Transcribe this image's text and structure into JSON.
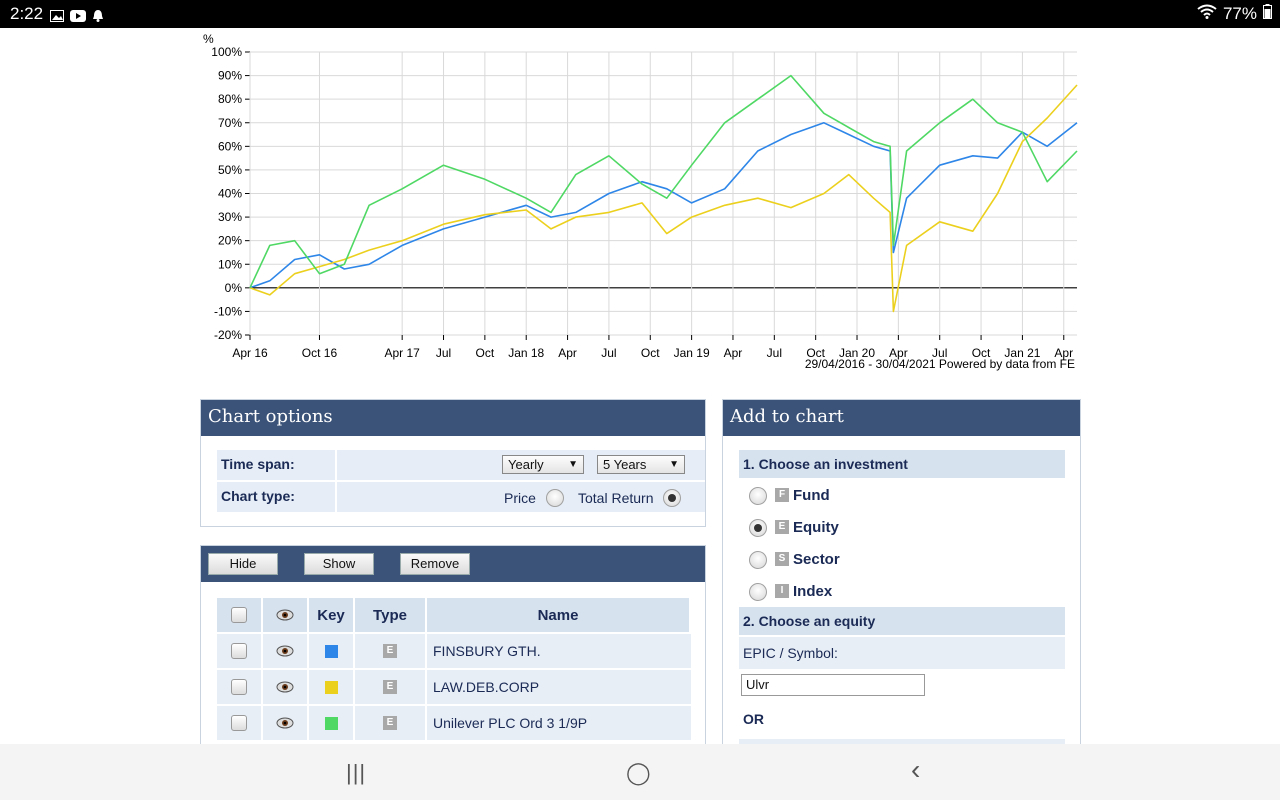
{
  "status": {
    "time": "2:22",
    "battery": "77%"
  },
  "chart": {
    "y_unit": "%",
    "caption": "29/04/2016 - 30/04/2021 Powered by data from FE"
  },
  "chart_data": {
    "type": "line",
    "ylim": [
      -20,
      100
    ],
    "y_ticks": [
      "100%",
      "90%",
      "80%",
      "70%",
      "60%",
      "50%",
      "40%",
      "30%",
      "20%",
      "10%",
      "0%",
      "-10%",
      "-20%"
    ],
    "x_ticks": [
      "Apr 16",
      "Oct 16",
      "Apr 17",
      "Jul",
      "Oct",
      "Jan 18",
      "Apr",
      "Jul",
      "Oct",
      "Jan 19",
      "Apr",
      "Jul",
      "Oct",
      "Jan 20",
      "Apr",
      "Jul",
      "Oct",
      "Jan 21",
      "Apr"
    ],
    "x_range": [
      "2016-04-29",
      "2021-04-30"
    ],
    "grid": true,
    "series": [
      {
        "name": "FINSBURY GTH.",
        "color": "#2e86e8",
        "x": [
          2016.33,
          2016.45,
          2016.6,
          2016.75,
          2016.9,
          2017.05,
          2017.25,
          2017.5,
          2017.75,
          2018.0,
          2018.15,
          2018.3,
          2018.5,
          2018.7,
          2018.85,
          2019.0,
          2019.2,
          2019.4,
          2019.6,
          2019.8,
          2019.95,
          2020.1,
          2020.2,
          2020.22,
          2020.3,
          2020.5,
          2020.7,
          2020.85,
          2021.0,
          2021.15,
          2021.33
        ],
        "values": [
          0,
          3,
          12,
          14,
          8,
          10,
          18,
          25,
          30,
          35,
          30,
          32,
          40,
          45,
          42,
          36,
          42,
          58,
          65,
          70,
          65,
          60,
          58,
          15,
          38,
          52,
          56,
          55,
          66,
          60,
          70
        ]
      },
      {
        "name": "LAW.DEB.CORP",
        "color": "#ecd01e",
        "x": [
          2016.33,
          2016.45,
          2016.6,
          2016.75,
          2016.9,
          2017.05,
          2017.25,
          2017.5,
          2017.75,
          2018.0,
          2018.15,
          2018.3,
          2018.5,
          2018.7,
          2018.85,
          2019.0,
          2019.2,
          2019.4,
          2019.6,
          2019.8,
          2019.95,
          2020.1,
          2020.2,
          2020.22,
          2020.3,
          2020.5,
          2020.7,
          2020.85,
          2021.0,
          2021.15,
          2021.33
        ],
        "values": [
          0,
          -3,
          6,
          9,
          12,
          16,
          20,
          27,
          31,
          33,
          25,
          30,
          32,
          36,
          23,
          30,
          35,
          38,
          34,
          40,
          48,
          38,
          32,
          -10,
          18,
          28,
          24,
          40,
          62,
          72,
          86
        ]
      },
      {
        "name": "Unilever PLC Ord 3 1/9P",
        "color": "#4fd864",
        "x": [
          2016.33,
          2016.45,
          2016.6,
          2016.75,
          2016.9,
          2017.05,
          2017.25,
          2017.5,
          2017.75,
          2018.0,
          2018.15,
          2018.3,
          2018.5,
          2018.7,
          2018.85,
          2019.0,
          2019.2,
          2019.4,
          2019.6,
          2019.8,
          2019.95,
          2020.1,
          2020.2,
          2020.22,
          2020.3,
          2020.5,
          2020.7,
          2020.85,
          2021.0,
          2021.15,
          2021.33
        ],
        "values": [
          0,
          18,
          20,
          6,
          10,
          35,
          42,
          52,
          46,
          38,
          32,
          48,
          56,
          44,
          38,
          52,
          70,
          80,
          90,
          74,
          68,
          62,
          60,
          18,
          58,
          70,
          80,
          70,
          66,
          45,
          58
        ]
      }
    ]
  },
  "chart_options": {
    "title": "Chart options",
    "time_span_label": "Time span:",
    "frequency": "Yearly",
    "period": "5 Years",
    "chart_type_label": "Chart type:",
    "price_label": "Price",
    "total_return_label": "Total Return"
  },
  "series_panel": {
    "hide": "Hide",
    "show": "Show",
    "remove": "Remove",
    "headers": {
      "key": "Key",
      "type": "Type",
      "name": "Name"
    },
    "rows": [
      {
        "name": "FINSBURY GTH.",
        "type": "E",
        "color": "#2e86e8"
      },
      {
        "name": "LAW.DEB.CORP",
        "type": "E",
        "color": "#ecd01e"
      },
      {
        "name": "Unilever PLC Ord 3 1/9P",
        "type": "E",
        "color": "#4fd864"
      }
    ]
  },
  "add_to_chart": {
    "title": "Add to chart",
    "step1": "1. Choose an investment",
    "options": [
      {
        "badge": "F",
        "label": "Fund"
      },
      {
        "badge": "E",
        "label": "Equity"
      },
      {
        "badge": "S",
        "label": "Sector"
      },
      {
        "badge": "I",
        "label": "Index"
      }
    ],
    "step2": "2. Choose an equity",
    "epic_label": "EPIC / Symbol:",
    "epic_value": "Ulvr",
    "or_label": "OR"
  },
  "nav": {
    "recent": "|||",
    "home": "◯",
    "back": "‹"
  }
}
